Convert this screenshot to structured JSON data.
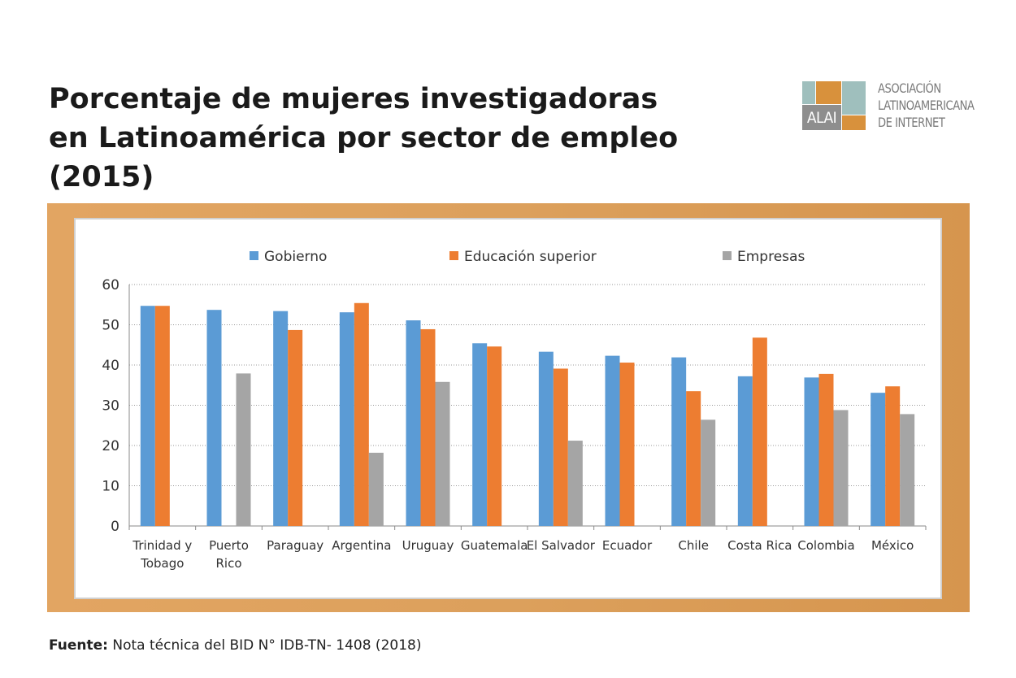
{
  "header": {
    "title_lines": [
      "Porcentaje de mujeres investigadoras",
      "en Latinoamérica por sector de empleo",
      "(2015)"
    ]
  },
  "logo": {
    "abbr": "ALAI",
    "name_lines": [
      "ASOCIACIÓN",
      "LATINOAMERICANA",
      "DE INTERNET"
    ],
    "colors": {
      "teal": "#9fbfbd",
      "orange": "#d8913c",
      "gray": "#8e8e8e"
    }
  },
  "footer": {
    "source_label": "Fuente:",
    "source_text": "Nota técnica del BID N° IDB-TN- 1408 (2018)"
  },
  "chart_data": {
    "type": "bar",
    "title": "",
    "xlabel": "",
    "ylabel": "",
    "ylim": [
      0,
      60
    ],
    "yticks": [
      0,
      10,
      20,
      30,
      40,
      50,
      60
    ],
    "grid": true,
    "legend_position": "top",
    "categories": [
      [
        "Trinidad y",
        "Tobago"
      ],
      [
        "Puerto",
        "Rico"
      ],
      [
        "Paraguay"
      ],
      [
        "Argentina"
      ],
      [
        "Uruguay"
      ],
      [
        "Guatemala"
      ],
      [
        "El Salvador"
      ],
      [
        "Ecuador"
      ],
      [
        "Chile"
      ],
      [
        "Costa Rica"
      ],
      [
        "Colombia"
      ],
      [
        "México"
      ]
    ],
    "series": [
      {
        "name": "Gobierno",
        "color": "#5b9bd5",
        "values": [
          54.7,
          53.7,
          53.4,
          53.1,
          51.1,
          45.4,
          43.3,
          42.3,
          41.9,
          37.2,
          36.9,
          33.1
        ]
      },
      {
        "name": "Educación superior",
        "color": "#ed7d31",
        "values": [
          54.7,
          null,
          48.7,
          55.4,
          48.9,
          44.6,
          39.1,
          40.6,
          33.5,
          46.8,
          37.8,
          34.7
        ]
      },
      {
        "name": "Empresas",
        "color": "#a5a5a5",
        "values": [
          null,
          37.9,
          null,
          18.2,
          35.8,
          null,
          21.2,
          null,
          26.4,
          null,
          28.8,
          27.8
        ]
      }
    ]
  }
}
